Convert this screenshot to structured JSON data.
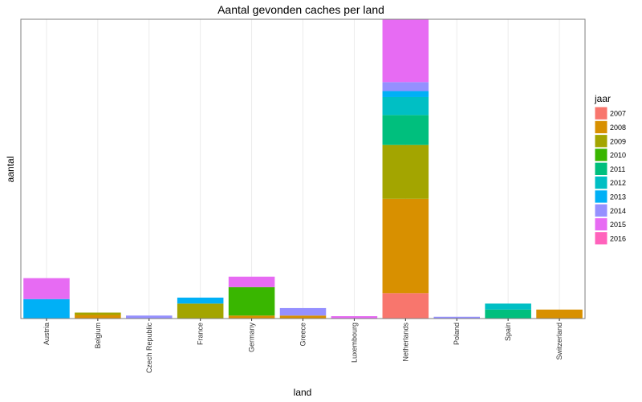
{
  "chart_data": {
    "type": "bar",
    "stacked": true,
    "title": "Aantal gevonden caches per land",
    "xlabel": "land",
    "ylabel": "aantal",
    "categories": [
      "Austria",
      "Belgium",
      "Czech Republic",
      "France",
      "Germany",
      "Greece",
      "Luxembourg",
      "Netherlands",
      "Poland",
      "Spain",
      "Switzerland"
    ],
    "ylim": [
      0,
      100
    ],
    "y_ticks_shown": false,
    "grid": "vertical",
    "legend": {
      "title": "jaar",
      "placement": "right",
      "entries": [
        "2007",
        "2008",
        "2009",
        "2010",
        "2011",
        "2012",
        "2013",
        "2014",
        "2015",
        "2016"
      ]
    },
    "series": [
      {
        "name": "2007",
        "color": "#F8766D",
        "values": [
          0,
          0,
          0,
          0,
          0,
          0,
          0,
          8.5,
          0,
          0,
          0
        ]
      },
      {
        "name": "2008",
        "color": "#D89000",
        "values": [
          0,
          1.2,
          0,
          0,
          1,
          1,
          0,
          31.5,
          0,
          0,
          3
        ]
      },
      {
        "name": "2009",
        "color": "#A3A500",
        "values": [
          0,
          0.8,
          0,
          5,
          0,
          0,
          0,
          18,
          0,
          0,
          0
        ]
      },
      {
        "name": "2010",
        "color": "#39B600",
        "values": [
          0,
          0,
          0,
          0,
          9.5,
          0,
          0,
          0,
          0,
          0,
          0
        ]
      },
      {
        "name": "2011",
        "color": "#00BF7D",
        "values": [
          0,
          0,
          0,
          0,
          0,
          0,
          0,
          10,
          0,
          3,
          0
        ]
      },
      {
        "name": "2012",
        "color": "#00BFC4",
        "values": [
          0,
          0,
          0,
          0,
          0,
          0,
          0,
          6,
          0,
          2,
          0
        ]
      },
      {
        "name": "2013",
        "color": "#00B0F6",
        "values": [
          6.5,
          0,
          0,
          2,
          0,
          0,
          0,
          2,
          0,
          0,
          0
        ]
      },
      {
        "name": "2014",
        "color": "#9590FF",
        "values": [
          0,
          0,
          1,
          0,
          0,
          2.5,
          0,
          3,
          0.6,
          0,
          0
        ]
      },
      {
        "name": "2015",
        "color": "#E76BF3",
        "values": [
          7,
          0,
          0,
          0,
          3.5,
          0,
          0.8,
          21,
          0,
          0,
          0
        ]
      },
      {
        "name": "2016",
        "color": "#FF62BC",
        "values": [
          0,
          0,
          0,
          0,
          0,
          0,
          0,
          0,
          0,
          0,
          0
        ]
      }
    ]
  }
}
